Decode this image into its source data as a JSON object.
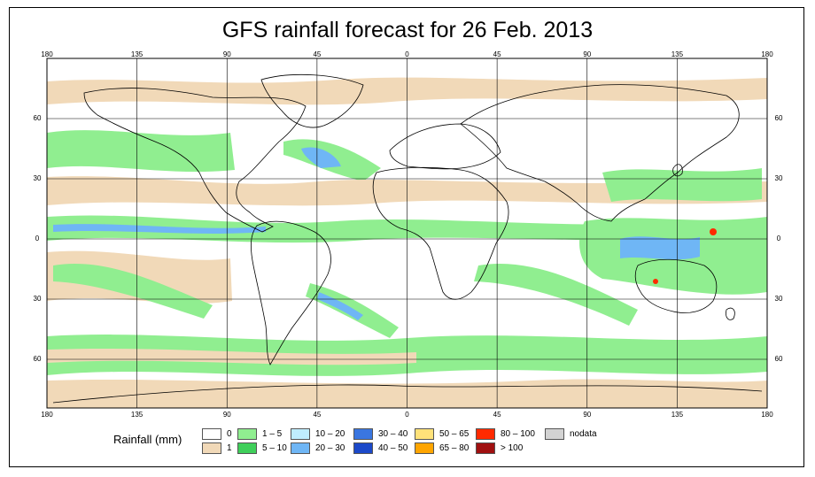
{
  "title": "GFS rainfall forecast for 26 Feb. 2013",
  "map": {
    "lon_ticks": [
      "180",
      "135",
      "90",
      "45",
      "0",
      "45",
      "90",
      "135",
      "180"
    ],
    "lat_ticks": [
      "60",
      "30",
      "0",
      "30",
      "60"
    ],
    "ocean_color": "#ffffff",
    "land_outline_color": "#000000",
    "grid_color": "#000000"
  },
  "legend": {
    "title": "Rainfall (mm)",
    "items": [
      {
        "label": "0",
        "color": "#ffffff"
      },
      {
        "label": "1",
        "color": "#f1d9b8"
      },
      {
        "label": "1 – 5",
        "color": "#90ee90"
      },
      {
        "label": "5 – 10",
        "color": "#3fcf5a"
      },
      {
        "label": "10 – 20",
        "color": "#bfeefe"
      },
      {
        "label": "20 – 30",
        "color": "#6fb6f5"
      },
      {
        "label": "30 – 40",
        "color": "#3a76e0"
      },
      {
        "label": "40 – 50",
        "color": "#1c49c9"
      },
      {
        "label": "50 – 65",
        "color": "#ffe27a"
      },
      {
        "label": "65 – 80",
        "color": "#ffa500"
      },
      {
        "label": "80 – 100",
        "color": "#ff2a00"
      },
      {
        "label": "> 100",
        "color": "#a01010"
      },
      {
        "label": "nodata",
        "color": "#d3d3d3"
      }
    ]
  }
}
